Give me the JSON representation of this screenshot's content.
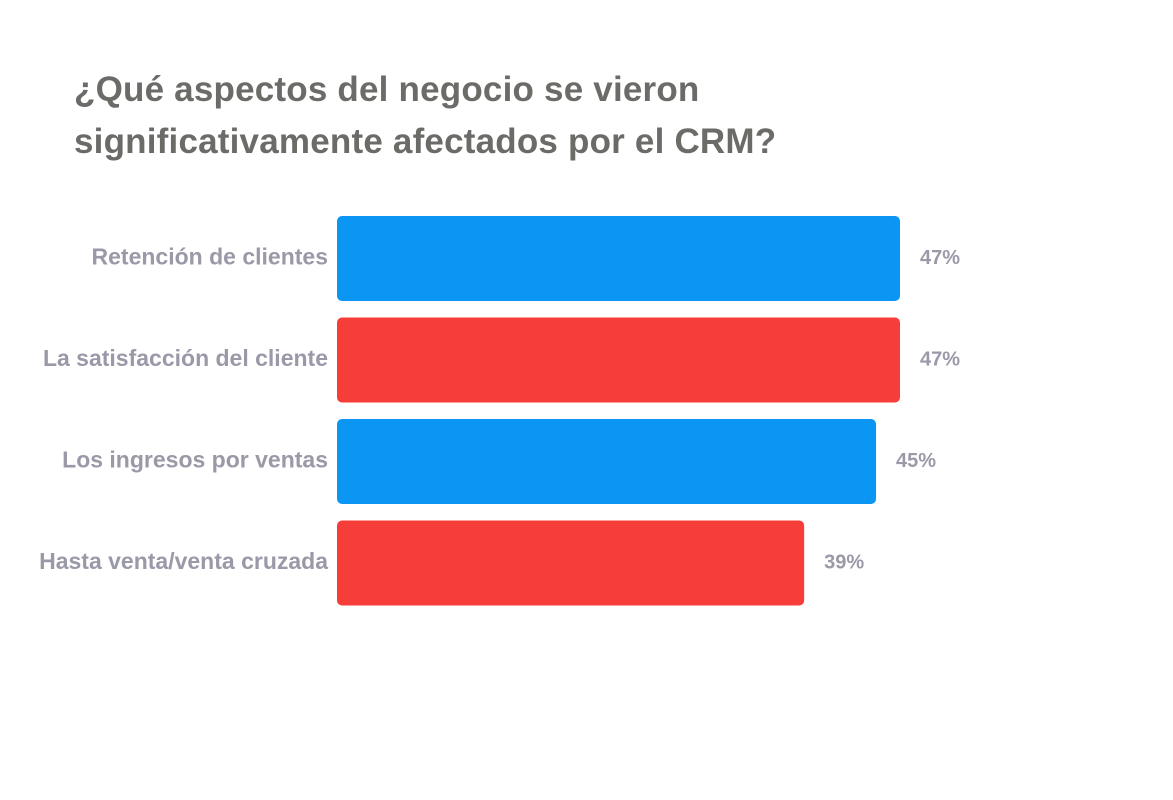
{
  "chart_data": {
    "type": "bar",
    "orientation": "horizontal",
    "title": "¿Qué aspectos del negocio se vieron significativamente afectados por el CRM?",
    "categories": [
      "Retención de clientes",
      "La satisfacción del cliente",
      "Los ingresos por ventas",
      "Hasta venta/venta cruzada"
    ],
    "values": [
      47,
      47,
      45,
      39
    ],
    "value_labels": [
      "47%",
      "47%",
      "45%",
      "39%"
    ],
    "unit": "%",
    "bar_colors": [
      "#0a96f2",
      "#f63d3a",
      "#0a96f2",
      "#f63d3a"
    ],
    "xlim": [
      0,
      47
    ],
    "grid": false,
    "legend": "none"
  }
}
